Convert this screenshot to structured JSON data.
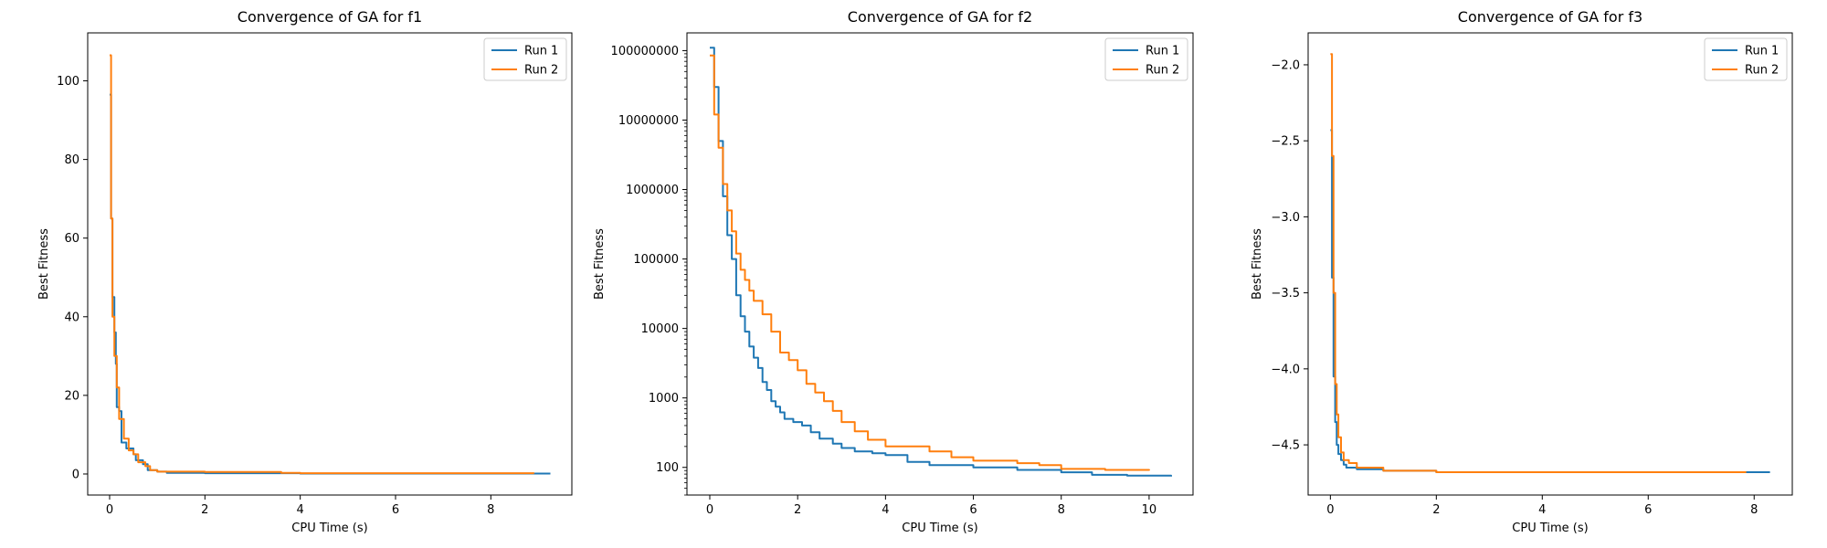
{
  "chart_data": [
    {
      "type": "line",
      "title": "Convergence of GA for f1",
      "xlabel": "CPU Time (s)",
      "ylabel": "Best Fitness",
      "xlim": [
        -0.46,
        9.7
      ],
      "ylim": [
        -5.35,
        112.2
      ],
      "xticks": [
        0,
        2,
        4,
        6,
        8
      ],
      "yticks": [
        0,
        20,
        40,
        60,
        80,
        100
      ],
      "ytick_labels": [
        "0",
        "20",
        "40",
        "60",
        "80",
        "100"
      ],
      "yscale": "linear",
      "legend": "top-right",
      "series": [
        {
          "name": "Run 1",
          "color": "#1f77b4",
          "step": true,
          "points": [
            [
              0,
              96.5
            ],
            [
              0.03,
              65
            ],
            [
              0.06,
              45
            ],
            [
              0.1,
              36
            ],
            [
              0.13,
              28
            ],
            [
              0.15,
              17
            ],
            [
              0.2,
              16
            ],
            [
              0.25,
              8
            ],
            [
              0.35,
              6.5
            ],
            [
              0.5,
              5
            ],
            [
              0.55,
              3.5
            ],
            [
              0.7,
              2.5
            ],
            [
              0.8,
              1
            ],
            [
              1.0,
              0.6
            ],
            [
              1.2,
              0.3
            ],
            [
              2.0,
              0.2
            ],
            [
              4.0,
              0.1
            ],
            [
              9.25,
              0.1
            ]
          ]
        },
        {
          "name": "Run 2",
          "color": "#ff7f0e",
          "step": true,
          "points": [
            [
              0,
              106.5
            ],
            [
              0.03,
              65
            ],
            [
              0.06,
              40
            ],
            [
              0.1,
              30
            ],
            [
              0.15,
              22
            ],
            [
              0.2,
              14
            ],
            [
              0.3,
              9
            ],
            [
              0.4,
              6
            ],
            [
              0.5,
              5
            ],
            [
              0.6,
              3
            ],
            [
              0.75,
              2
            ],
            [
              0.85,
              1
            ],
            [
              1.0,
              0.6
            ],
            [
              2.0,
              0.5
            ],
            [
              3.6,
              0.3
            ],
            [
              4.0,
              0.2
            ],
            [
              8.9,
              0.1
            ]
          ]
        }
      ]
    },
    {
      "type": "line",
      "title": "Convergence of GA for f2",
      "xlabel": "CPU Time (s)",
      "ylabel": "Best Fitness",
      "xlim": [
        -0.52,
        11.0
      ],
      "ylim": [
        40,
        180000000
      ],
      "xticks": [
        0,
        2,
        4,
        6,
        8,
        10
      ],
      "yticks": [
        100,
        1000,
        10000,
        100000,
        1000000,
        10000000,
        100000000
      ],
      "ytick_labels": [
        "100",
        "1000",
        "10000",
        "100000",
        "1000000",
        "10000000",
        "100000000"
      ],
      "yscale": "log",
      "legend": "top-right",
      "series": [
        {
          "name": "Run 1",
          "color": "#1f77b4",
          "step": true,
          "points": [
            [
              0,
              110000000
            ],
            [
              0.1,
              30000000
            ],
            [
              0.2,
              5000000
            ],
            [
              0.3,
              800000
            ],
            [
              0.4,
              220000
            ],
            [
              0.5,
              100000
            ],
            [
              0.6,
              30000
            ],
            [
              0.7,
              15000
            ],
            [
              0.8,
              9000
            ],
            [
              0.9,
              5500
            ],
            [
              1.0,
              3800
            ],
            [
              1.1,
              2700
            ],
            [
              1.2,
              1700
            ],
            [
              1.3,
              1300
            ],
            [
              1.4,
              900
            ],
            [
              1.5,
              750
            ],
            [
              1.6,
              620
            ],
            [
              1.7,
              500
            ],
            [
              1.9,
              450
            ],
            [
              2.1,
              400
            ],
            [
              2.3,
              320
            ],
            [
              2.5,
              260
            ],
            [
              2.8,
              220
            ],
            [
              3.0,
              190
            ],
            [
              3.3,
              170
            ],
            [
              3.7,
              160
            ],
            [
              4.0,
              150
            ],
            [
              4.5,
              120
            ],
            [
              5.0,
              108
            ],
            [
              6.0,
              100
            ],
            [
              7.0,
              92
            ],
            [
              8.0,
              85
            ],
            [
              8.7,
              78
            ],
            [
              9.5,
              76
            ],
            [
              10.5,
              74
            ]
          ]
        },
        {
          "name": "Run 2",
          "color": "#ff7f0e",
          "step": true,
          "points": [
            [
              0,
              85000000
            ],
            [
              0.1,
              12000000
            ],
            [
              0.2,
              4000000
            ],
            [
              0.3,
              1200000
            ],
            [
              0.4,
              500000
            ],
            [
              0.5,
              250000
            ],
            [
              0.6,
              120000
            ],
            [
              0.7,
              70000
            ],
            [
              0.8,
              50000
            ],
            [
              0.9,
              35000
            ],
            [
              1.0,
              25000
            ],
            [
              1.2,
              16000
            ],
            [
              1.4,
              9000
            ],
            [
              1.6,
              4500
            ],
            [
              1.8,
              3500
            ],
            [
              2.0,
              2500
            ],
            [
              2.2,
              1600
            ],
            [
              2.4,
              1200
            ],
            [
              2.6,
              900
            ],
            [
              2.8,
              650
            ],
            [
              3.0,
              450
            ],
            [
              3.3,
              330
            ],
            [
              3.6,
              250
            ],
            [
              4.0,
              200
            ],
            [
              5.0,
              170
            ],
            [
              5.5,
              140
            ],
            [
              6.0,
              125
            ],
            [
              7.0,
              115
            ],
            [
              7.5,
              108
            ],
            [
              8.0,
              95
            ],
            [
              9.0,
              92
            ],
            [
              10.0,
              90
            ]
          ]
        }
      ]
    },
    {
      "type": "line",
      "title": "Convergence of GA for f3",
      "xlabel": "CPU Time (s)",
      "ylabel": "Best Fitness",
      "xlim": [
        -0.42,
        8.72
      ],
      "ylim": [
        -4.83,
        -1.79
      ],
      "xticks": [
        0,
        2,
        4,
        6,
        8
      ],
      "yticks": [
        -4.5,
        -4.0,
        -3.5,
        -3.0,
        -2.5,
        -2.0
      ],
      "ytick_labels": [
        "−4.5",
        "−4.0",
        "−3.5",
        "−3.0",
        "−2.5",
        "−2.0"
      ],
      "yscale": "linear",
      "legend": "top-right",
      "series": [
        {
          "name": "Run 1",
          "color": "#1f77b4",
          "step": true,
          "points": [
            [
              0,
              -2.43
            ],
            [
              0.03,
              -3.4
            ],
            [
              0.06,
              -4.05
            ],
            [
              0.09,
              -4.35
            ],
            [
              0.12,
              -4.5
            ],
            [
              0.15,
              -4.56
            ],
            [
              0.2,
              -4.6
            ],
            [
              0.25,
              -4.63
            ],
            [
              0.3,
              -4.65
            ],
            [
              0.5,
              -4.66
            ],
            [
              1.0,
              -4.67
            ],
            [
              2.0,
              -4.68
            ],
            [
              8.3,
              -4.68
            ]
          ]
        },
        {
          "name": "Run 2",
          "color": "#ff7f0e",
          "step": true,
          "points": [
            [
              0,
              -1.93
            ],
            [
              0.03,
              -2.6
            ],
            [
              0.06,
              -3.5
            ],
            [
              0.09,
              -4.1
            ],
            [
              0.12,
              -4.3
            ],
            [
              0.15,
              -4.45
            ],
            [
              0.2,
              -4.55
            ],
            [
              0.25,
              -4.6
            ],
            [
              0.35,
              -4.62
            ],
            [
              0.5,
              -4.65
            ],
            [
              1.0,
              -4.67
            ],
            [
              2.0,
              -4.68
            ],
            [
              7.85,
              -4.68
            ]
          ]
        }
      ]
    }
  ]
}
